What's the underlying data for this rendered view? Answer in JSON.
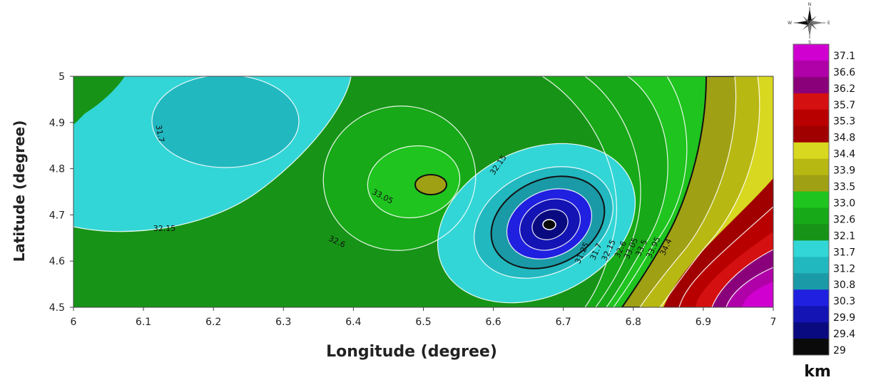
{
  "chart_data": {
    "type": "contour",
    "xlabel": "Longitude (degree)",
    "ylabel": "Latitude (degree)",
    "xlim": [
      6,
      7
    ],
    "ylim": [
      4.5,
      5
    ],
    "x_ticks": [
      "6",
      "6.1",
      "6.2",
      "6.3",
      "6.4",
      "6.5",
      "6.6",
      "6.7",
      "6.8",
      "6.9",
      "7"
    ],
    "y_ticks": [
      "4.5",
      "4.6",
      "4.7",
      "4.8",
      "4.9",
      "5"
    ],
    "colorbar": {
      "unit": "km",
      "levels": [
        "29",
        "29.4",
        "29.9",
        "30.3",
        "30.8",
        "31.2",
        "31.7",
        "32.1",
        "32.6",
        "33.0",
        "33.5",
        "33.9",
        "34.4",
        "34.8",
        "35.3",
        "35.7",
        "36.2",
        "36.6",
        "37.1"
      ],
      "colors": [
        "#0a0a0a",
        "#0a0a80",
        "#1414b4",
        "#2020e0",
        "#1a9aa6",
        "#22b8c0",
        "#33d6d6",
        "#179417",
        "#17a917",
        "#1fc41f",
        "#a0a014",
        "#b8b812",
        "#d8d820",
        "#a00000",
        "#b80000",
        "#d41010",
        "#8a007a",
        "#b000a8",
        "#d000d0"
      ]
    },
    "contour_labels": [
      {
        "text": "31.7",
        "lon": 6.12,
        "lat": 4.875
      },
      {
        "text": "32.15",
        "lon": 6.13,
        "lat": 4.665
      },
      {
        "text": "33.05",
        "lon": 6.44,
        "lat": 4.735
      },
      {
        "text": "32.6",
        "lon": 6.375,
        "lat": 4.637
      },
      {
        "text": "32.15",
        "lon": 6.61,
        "lat": 4.805
      },
      {
        "text": "31.25",
        "lon": 6.73,
        "lat": 4.615
      },
      {
        "text": "31.7",
        "lon": 6.75,
        "lat": 4.618
      },
      {
        "text": "32.15",
        "lon": 6.768,
        "lat": 4.621
      },
      {
        "text": "32.6",
        "lon": 6.785,
        "lat": 4.623
      },
      {
        "text": "33.05",
        "lon": 6.8,
        "lat": 4.625
      },
      {
        "text": "33.5",
        "lon": 6.815,
        "lat": 4.626
      },
      {
        "text": "33.95",
        "lon": 6.832,
        "lat": 4.627
      },
      {
        "text": "34.4",
        "lon": 6.85,
        "lat": 4.628
      }
    ],
    "compass": {
      "n": "N",
      "s": "S",
      "e": "E",
      "w": "W"
    }
  }
}
